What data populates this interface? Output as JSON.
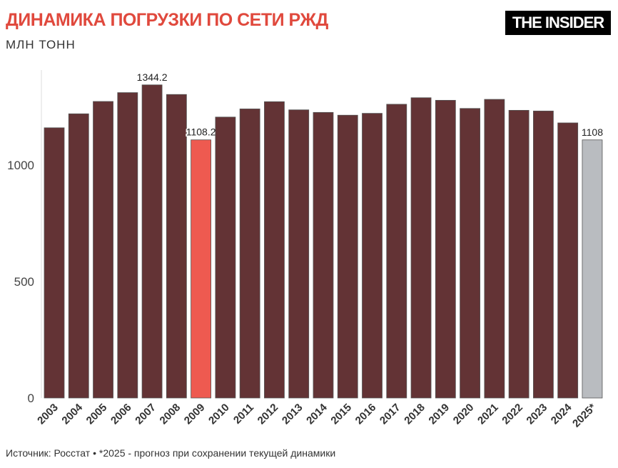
{
  "header": {
    "title": "ДИНАМИКА ПОГРУЗКИ ПО СЕТИ РЖД",
    "subtitle": "МЛН ТОНН",
    "logo": "THE INSIDER"
  },
  "footer": {
    "source": "Источник: Росстат • *2025 - прогноз при сохранении текущей динамики"
  },
  "chart_data": {
    "type": "bar",
    "title": "ДИНАМИКА ПОГРУЗКИ ПО СЕТИ РЖД",
    "ylabel": "МЛН ТОНН",
    "ylim": [
      0,
      1400
    ],
    "yticks": [
      0,
      500,
      1000
    ],
    "grid": false,
    "categories": [
      "2003",
      "2004",
      "2005",
      "2006",
      "2007",
      "2008",
      "2009",
      "2010",
      "2011",
      "2012",
      "2013",
      "2014",
      "2015",
      "2016",
      "2017",
      "2018",
      "2019",
      "2020",
      "2021",
      "2022",
      "2023",
      "2024",
      "2025*"
    ],
    "values": [
      1160,
      1220,
      1273,
      1311,
      1344.2,
      1303,
      1108.2,
      1206,
      1241,
      1272,
      1237,
      1226,
      1214,
      1222,
      1261,
      1289,
      1278,
      1243,
      1282,
      1235,
      1232,
      1181,
      1108
    ],
    "data_labels": {
      "2007": "1344.2",
      "2009": "1108.2",
      "2025*": "1108"
    },
    "colors": {
      "default": "#633335",
      "highlight_2009": "#ee5a50",
      "forecast_2025": "#b9bcc0"
    }
  }
}
